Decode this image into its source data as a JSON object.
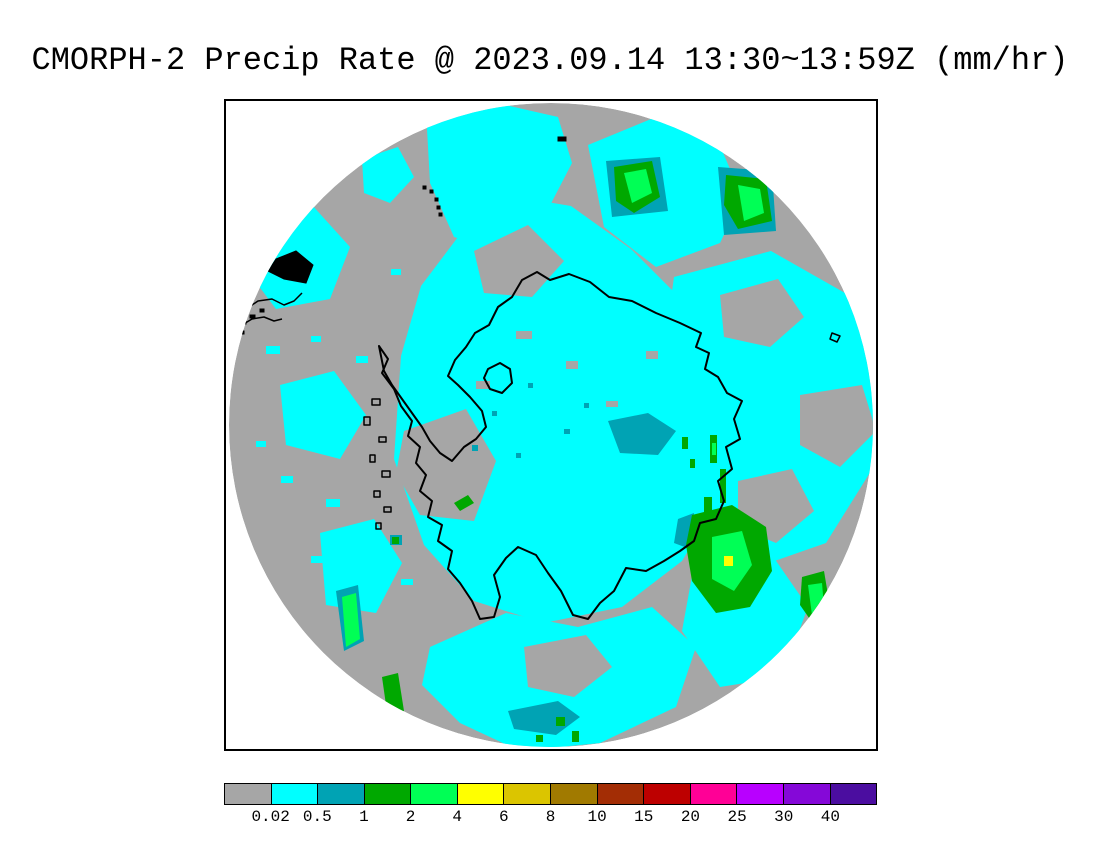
{
  "title": "CMORPH-2 Precip Rate @ 2023.09.14 13:30~13:59Z (mm/hr)",
  "colorbar": {
    "labels": [
      "0.02",
      "0.5",
      "1",
      "2",
      "4",
      "6",
      "8",
      "10",
      "15",
      "20",
      "25",
      "30",
      "40"
    ],
    "colors": [
      "#a6a6a6",
      "#00ffff",
      "#00a3b4",
      "#00a800",
      "#00ff55",
      "#ffff00",
      "#dbc500",
      "#a17a00",
      "#a32d05",
      "#bd0000",
      "#ff0096",
      "#b800ff",
      "#8508d8",
      "#4b0da0"
    ]
  },
  "map": {
    "region": "Antarctica (south polar view)",
    "palette": {
      "below_0.02": "#a6a6a6",
      "0.02_to_0.5": "#00ffff",
      "0.5_to_1": "#00a3b4",
      "1_to_2": "#00a800",
      "2_to_4": "#00ff55",
      "4_to_6": "#ffff00"
    },
    "coastline_color": "#000000",
    "background": "#ffffff"
  }
}
